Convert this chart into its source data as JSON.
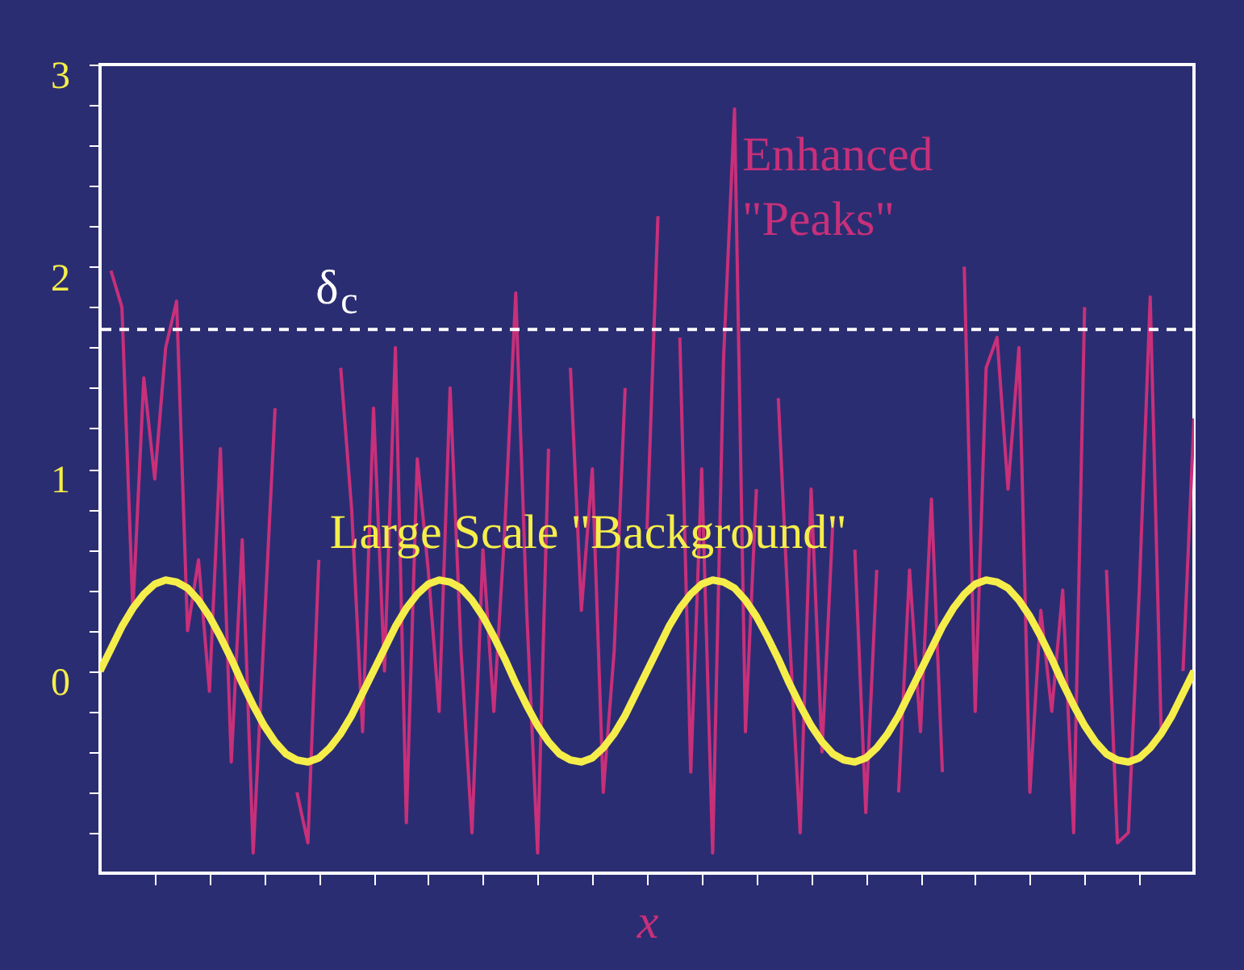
{
  "chart_data": {
    "type": "line",
    "xlabel": "x",
    "categories": [
      null,
      null,
      null,
      null,
      null,
      null,
      null,
      null,
      null,
      null,
      null,
      null,
      null,
      null,
      null,
      null,
      null,
      null,
      null,
      null,
      null,
      null,
      null,
      null,
      null,
      null,
      null,
      null,
      null,
      null,
      null,
      null,
      null,
      null,
      null,
      null,
      null,
      null,
      null,
      null,
      null,
      null,
      null,
      null,
      null,
      null,
      null,
      null,
      null,
      null,
      null,
      null,
      null,
      null,
      null,
      null,
      null,
      null,
      null,
      null,
      null,
      null,
      null,
      null,
      null,
      null,
      null,
      null,
      null,
      null,
      null,
      null,
      null,
      null,
      null,
      null,
      null,
      null,
      null,
      null,
      null,
      null,
      null,
      null,
      null,
      null,
      null,
      null,
      null,
      null,
      null,
      null,
      null,
      null,
      null,
      null,
      null,
      null,
      null,
      null,
      null
    ],
    "ylim": [
      -1,
      3
    ],
    "yticks": [
      {
        "value": -0.8,
        "label": null
      },
      {
        "value": -0.6,
        "label": null
      },
      {
        "value": -0.4,
        "label": null
      },
      {
        "value": -0.2,
        "label": null
      },
      0,
      {
        "value": 0.2,
        "label": null
      },
      {
        "value": 0.4,
        "label": null
      },
      {
        "value": 0.6,
        "label": null
      },
      {
        "value": 0.8,
        "label": null
      },
      1,
      {
        "value": 1.2,
        "label": null
      },
      {
        "value": 1.4,
        "label": null
      },
      {
        "value": 1.6,
        "label": null
      },
      {
        "value": 1.8,
        "label": null
      },
      2,
      {
        "value": 2.2,
        "label": null
      },
      {
        "value": 2.4,
        "label": null
      },
      {
        "value": 2.6,
        "label": null
      },
      {
        "value": 2.8,
        "label": null
      },
      3
    ],
    "tick_labels": "y",
    "grid": false,
    "marker": "none",
    "line_style": "solid",
    "series": [
      {
        "name": "Enhanced \"Peaks\"",
        "color": "#c8307a",
        "values": [
          null,
          1.98,
          1.8,
          0.3,
          1.45,
          0.95,
          1.6,
          1.83,
          0.2,
          0.55,
          -0.1,
          1.1,
          -0.45,
          0.65,
          -0.9,
          0.2,
          1.3,
          null,
          -0.6,
          -0.85,
          0.55,
          null,
          1.5,
          0.8,
          -0.3,
          1.3,
          0,
          1.6,
          -0.75,
          1.05,
          0.5,
          -0.2,
          1.4,
          0.1,
          -0.8,
          0.6,
          -0.2,
          0.7,
          1.87,
          0.3,
          -0.9,
          1.1,
          null,
          1.5,
          0.3,
          1,
          -0.6,
          0.1,
          1.4,
          null,
          0.7,
          2.25,
          null,
          1.65,
          -0.5,
          1,
          -0.9,
          1.55,
          2.78,
          -0.3,
          0.9,
          null,
          1.35,
          0.2,
          -0.8,
          0.9,
          -0.4,
          0.75,
          null,
          0.6,
          -0.7,
          0.5,
          null,
          -0.6,
          0.5,
          -0.3,
          0.85,
          -0.5,
          null,
          2,
          -0.2,
          1.5,
          1.65,
          0.9,
          1.6,
          -0.6,
          0.3,
          -0.2,
          0.4,
          -0.8,
          1.8,
          null,
          0.5,
          -0.85,
          -0.8,
          0.4,
          1.85,
          -0.3,
          null,
          0,
          1.25
        ]
      },
      {
        "name": "Large Scale \"Background\"",
        "color": "#f5ee4a",
        "values": [
          0,
          0.11,
          0.22,
          0.31,
          0.38,
          0.43,
          0.45,
          0.44,
          0.41,
          0.35,
          0.27,
          0.17,
          0.06,
          -0.06,
          -0.17,
          -0.27,
          -0.35,
          -0.41,
          -0.44,
          -0.45,
          -0.43,
          -0.38,
          -0.31,
          -0.22,
          -0.11,
          0,
          0.11,
          0.22,
          0.31,
          0.38,
          0.43,
          0.45,
          0.44,
          0.41,
          0.35,
          0.27,
          0.17,
          0.06,
          -0.06,
          -0.17,
          -0.27,
          -0.35,
          -0.41,
          -0.44,
          -0.45,
          -0.43,
          -0.38,
          -0.31,
          -0.22,
          -0.11,
          0,
          0.11,
          0.22,
          0.31,
          0.38,
          0.43,
          0.45,
          0.44,
          0.41,
          0.35,
          0.27,
          0.17,
          0.06,
          -0.06,
          -0.17,
          -0.27,
          -0.35,
          -0.41,
          -0.44,
          -0.45,
          -0.43,
          -0.38,
          -0.31,
          -0.22,
          -0.11,
          0,
          0.11,
          0.22,
          0.31,
          0.38,
          0.43,
          0.45,
          0.44,
          0.41,
          0.35,
          0.27,
          0.17,
          0.06,
          -0.06,
          -0.17,
          -0.27,
          -0.35,
          -0.41,
          -0.44,
          -0.45,
          -0.43,
          -0.38,
          -0.31,
          -0.22,
          -0.11,
          0
        ]
      }
    ],
    "ref_lines": [
      {
        "axis": "y",
        "value": 1.69,
        "label": "δ$_{c}$",
        "color": "#ffffff",
        "line_style": "dashed"
      }
    ]
  }
}
